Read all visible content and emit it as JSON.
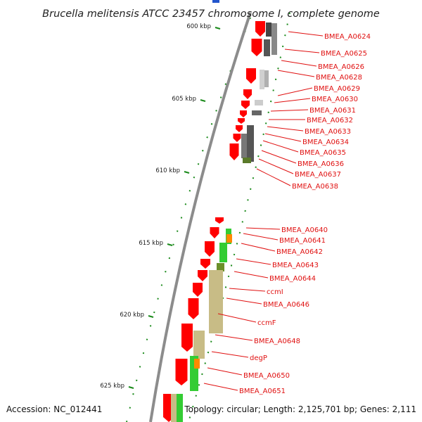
{
  "title": "Brucella melitensis ATCC 23457 chromosome I, complete genome",
  "accession_label": "Accession: NC_012441",
  "summary_label": "Topology: circular; Length: 2,125,701 bp; Genes: 2,111",
  "scale_labels": [
    "600 kbp",
    "605 kbp",
    "610 kbp",
    "615 kbp",
    "620 kbp",
    "625 kbp"
  ],
  "colors": {
    "gene_label": "#e01010",
    "cds_arrow": "#ff0000",
    "backbone": "#8c8c8c",
    "tick": "#1a8a1a"
  },
  "genes": [
    "BMEA_A0624",
    "BMEA_A0625",
    "BMEA_A0626",
    "BMEA_A0628",
    "BMEA_A0629",
    "BMEA_A0630",
    "BMEA_A0631",
    "BMEA_A0632",
    "BMEA_A0633",
    "BMEA_A0634",
    "BMEA_A0635",
    "BMEA_A0636",
    "BMEA_A0637",
    "BMEA_A0638",
    "BMEA_A0640",
    "BMEA_A0641",
    "BMEA_A0642",
    "BMEA_A0643",
    "BMEA_A0644",
    "ccmI",
    "BMEA_A0646",
    "ccmF",
    "BMEA_A0648",
    "degP",
    "BMEA_A0650",
    "BMEA_A0651"
  ]
}
